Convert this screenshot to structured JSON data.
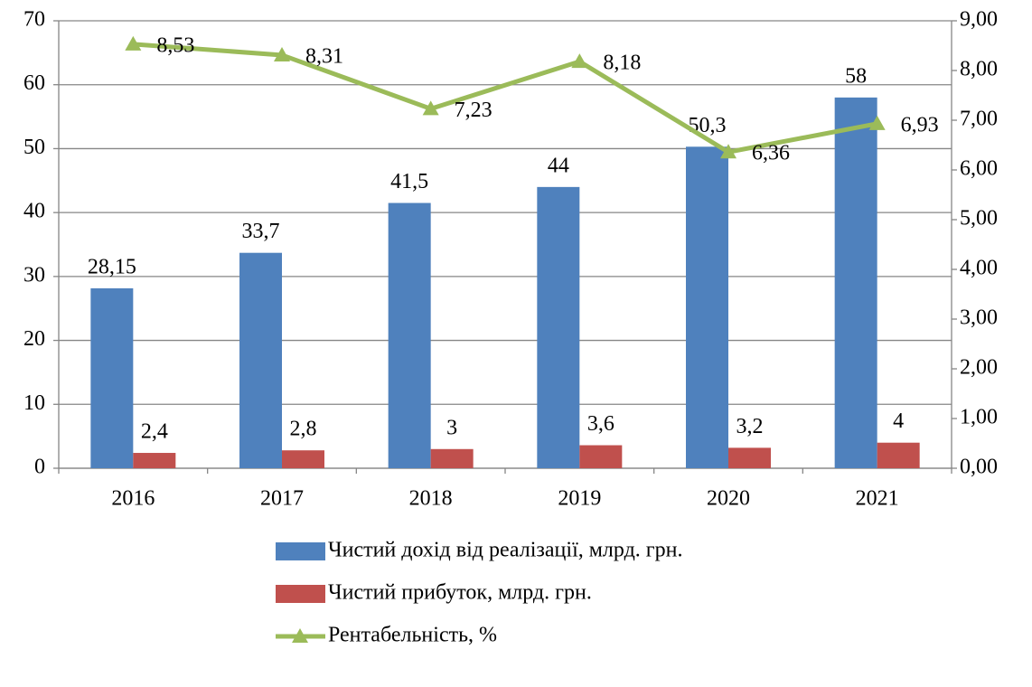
{
  "chart_data": {
    "type": "bar",
    "categories": [
      "2016",
      "2017",
      "2018",
      "2019",
      "2020",
      "2021"
    ],
    "series": [
      {
        "name": "Чистий дохід від реалізації, млрд. грн.",
        "color": "#4f81bd",
        "type": "bar",
        "values": [
          28.15,
          33.7,
          41.5,
          44,
          50.3,
          58
        ],
        "value_labels": [
          "28,15",
          "33,7",
          "41,5",
          "44",
          "50,3",
          "58"
        ]
      },
      {
        "name": "Чистий прибуток, млрд. грн.",
        "color": "#c0504d",
        "type": "bar",
        "values": [
          2.4,
          2.8,
          3,
          3.6,
          3.2,
          4
        ],
        "value_labels": [
          "2,4",
          "2,8",
          "3",
          "3,6",
          "3,2",
          "4"
        ]
      },
      {
        "name": "Рентабельність, %",
        "color": "#9bbb59",
        "type": "line",
        "axis": "y2",
        "values": [
          8.53,
          8.31,
          7.23,
          8.18,
          6.36,
          6.93
        ],
        "value_labels": [
          "8,53",
          "8,31",
          "7,23",
          "8,18",
          "6,36",
          "6,93"
        ]
      }
    ],
    "ylim": [
      0,
      70
    ],
    "yticks": [
      0,
      10,
      20,
      30,
      40,
      50,
      60,
      70
    ],
    "y2lim": [
      0,
      9
    ],
    "y2ticks": [
      {
        "value": 0,
        "label": "0,00"
      },
      {
        "value": 1,
        "label": "1,00"
      },
      {
        "value": 2,
        "label": "2,00"
      },
      {
        "value": 3,
        "label": "3,00"
      },
      {
        "value": 4,
        "label": "4,00"
      },
      {
        "value": 5,
        "label": "5,00"
      },
      {
        "value": 6,
        "label": "6,00"
      },
      {
        "value": 7,
        "label": "7,00"
      },
      {
        "value": 8,
        "label": "8,00"
      },
      {
        "value": 9,
        "label": "9,00"
      }
    ],
    "grid": true,
    "legend": "bottom"
  }
}
